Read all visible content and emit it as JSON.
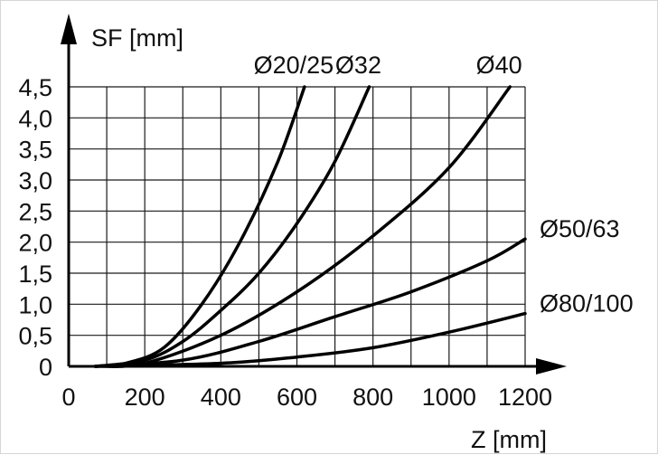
{
  "chart_data": {
    "type": "line",
    "title": "",
    "ylabel": "SF [mm]",
    "xlabel": "Z [mm]",
    "xlim": [
      0,
      1200
    ],
    "ylim": [
      0,
      4.5
    ],
    "x_ticks": [
      "0",
      "200",
      "400",
      "600",
      "800",
      "1000",
      "1200"
    ],
    "y_ticks": [
      "0",
      "0,5",
      "1,0",
      "1,5",
      "2,0",
      "2,5",
      "3,0",
      "3,5",
      "4,0",
      "4,5"
    ],
    "grid": true,
    "colors": {
      "curve": "#000000",
      "grid": "#1a1a1a"
    },
    "series": [
      {
        "name": "Ø20/25",
        "label_at": "top",
        "points": [
          [
            70,
            0
          ],
          [
            150,
            0.05
          ],
          [
            250,
            0.3
          ],
          [
            350,
            1.0
          ],
          [
            450,
            2.0
          ],
          [
            550,
            3.3
          ],
          [
            620,
            4.5
          ]
        ]
      },
      {
        "name": "Ø32",
        "label_at": "top",
        "points": [
          [
            70,
            0
          ],
          [
            200,
            0.1
          ],
          [
            300,
            0.4
          ],
          [
            400,
            0.9
          ],
          [
            500,
            1.5
          ],
          [
            600,
            2.3
          ],
          [
            700,
            3.3
          ],
          [
            790,
            4.5
          ]
        ]
      },
      {
        "name": "Ø40",
        "label_at": "top",
        "points": [
          [
            70,
            0
          ],
          [
            200,
            0.05
          ],
          [
            400,
            0.5
          ],
          [
            600,
            1.2
          ],
          [
            800,
            2.1
          ],
          [
            1000,
            3.2
          ],
          [
            1160,
            4.5
          ]
        ]
      },
      {
        "name": "Ø50/63",
        "label_at": "right",
        "points": [
          [
            70,
            0
          ],
          [
            300,
            0.1
          ],
          [
            500,
            0.4
          ],
          [
            700,
            0.8
          ],
          [
            900,
            1.2
          ],
          [
            1100,
            1.7
          ],
          [
            1200,
            2.05
          ]
        ]
      },
      {
        "name": "Ø80/100",
        "label_at": "right",
        "points": [
          [
            70,
            0
          ],
          [
            400,
            0.05
          ],
          [
            600,
            0.15
          ],
          [
            800,
            0.3
          ],
          [
            1000,
            0.55
          ],
          [
            1200,
            0.85
          ]
        ]
      }
    ]
  }
}
